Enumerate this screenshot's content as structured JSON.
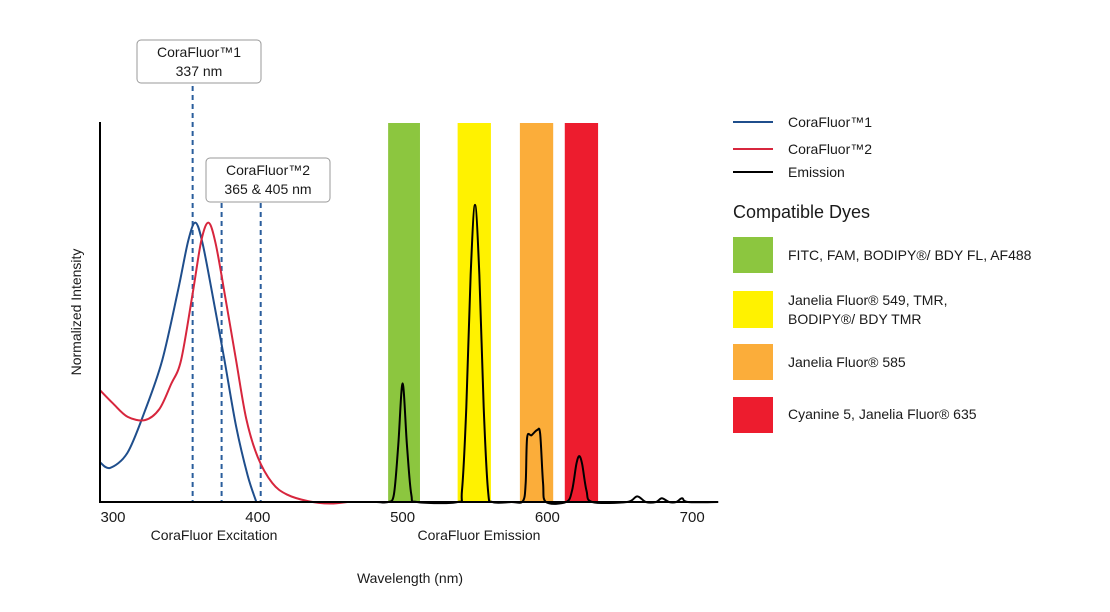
{
  "chart_data": {
    "type": "line",
    "title": "",
    "xlabel": "Wavelength (nm)",
    "ylabel": "Normalized Intensity",
    "x_section_labels": [
      "CoraFluor Excitation",
      "CoraFluor Emission"
    ],
    "xlim": [
      291,
      718
    ],
    "ylim": [
      0,
      1
    ],
    "x_ticks": [
      300,
      400,
      500,
      600,
      700
    ],
    "grid": false,
    "legend_position": "right",
    "series": [
      {
        "name": "CoraFluor™1",
        "color": "#1f4e8c",
        "points": [
          [
            291,
            0.105
          ],
          [
            298,
            0.09
          ],
          [
            310,
            0.13
          ],
          [
            322,
            0.24
          ],
          [
            334,
            0.374
          ],
          [
            345,
            0.56
          ],
          [
            352,
            0.69
          ],
          [
            357,
            0.737
          ],
          [
            362,
            0.68
          ],
          [
            370,
            0.52
          ],
          [
            377,
            0.374
          ],
          [
            385,
            0.2
          ],
          [
            393,
            0.07
          ],
          [
            399,
            0.0
          ]
        ]
      },
      {
        "name": "CoraFluor™2",
        "color": "#d7263d",
        "points": [
          [
            291,
            0.295
          ],
          [
            300,
            0.26
          ],
          [
            310,
            0.225
          ],
          [
            322,
            0.216
          ],
          [
            332,
            0.245
          ],
          [
            340,
            0.31
          ],
          [
            347,
            0.374
          ],
          [
            355,
            0.55
          ],
          [
            361,
            0.69
          ],
          [
            366,
            0.737
          ],
          [
            371,
            0.68
          ],
          [
            378,
            0.53
          ],
          [
            385,
            0.374
          ],
          [
            392,
            0.22
          ],
          [
            400,
            0.118
          ],
          [
            410,
            0.05
          ],
          [
            420,
            0.02
          ],
          [
            435,
            0.002
          ],
          [
            450,
            -0.004
          ],
          [
            462,
            0.0
          ]
        ]
      },
      {
        "name": "Emission",
        "color": "#000000",
        "points": [
          [
            482,
            0
          ],
          [
            490,
            0
          ],
          [
            494,
            0.02
          ],
          [
            497,
            0.15
          ],
          [
            500,
            0.313
          ],
          [
            503,
            0.15
          ],
          [
            506,
            0.02
          ],
          [
            510,
            0
          ],
          [
            538,
            0
          ],
          [
            541,
            0.03
          ],
          [
            544,
            0.25
          ],
          [
            547,
            0.6
          ],
          [
            550,
            0.784
          ],
          [
            553,
            0.6
          ],
          [
            556,
            0.25
          ],
          [
            559,
            0.03
          ],
          [
            562,
            0
          ],
          [
            575,
            0
          ],
          [
            583,
            0.002
          ],
          [
            585,
            0.05
          ],
          [
            586,
            0.17
          ],
          [
            589,
            0.176
          ],
          [
            593,
            0.19
          ],
          [
            595,
            0.18
          ],
          [
            597,
            0.05
          ],
          [
            599,
            0
          ],
          [
            613,
            0
          ],
          [
            617,
            0.03
          ],
          [
            620,
            0.1
          ],
          [
            622,
            0.121
          ],
          [
            624,
            0.1
          ],
          [
            627,
            0.03
          ],
          [
            631,
            0
          ],
          [
            655,
            0
          ],
          [
            662,
            0.015
          ],
          [
            668,
            0
          ],
          [
            675,
            0
          ],
          [
            679,
            0.01
          ],
          [
            684,
            0
          ],
          [
            689,
            0
          ],
          [
            693,
            0.01
          ],
          [
            697,
            0
          ],
          [
            718,
            0
          ]
        ]
      }
    ],
    "markers": [
      {
        "x": 355,
        "group": 0
      },
      {
        "x": 375,
        "group": 1
      },
      {
        "x": 402,
        "group": 1
      }
    ],
    "marker_labels": [
      {
        "line1": "CoraFluor™1",
        "line2": "337 nm"
      },
      {
        "line1": "CoraFluor™2",
        "line2": "365 & 405 nm"
      }
    ],
    "dye_bands_title": "Compatible Dyes",
    "dye_bands": [
      {
        "range": [
          490,
          512
        ],
        "color": "#8cc63f",
        "label": [
          "FITC, FAM, BODIPY®/ BDY FL, AF488"
        ]
      },
      {
        "range": [
          538,
          561
        ],
        "color": "#fff200",
        "label": [
          "Janelia Fluor® 549, TMR,",
          "BODIPY®/ BDY TMR"
        ]
      },
      {
        "range": [
          581,
          604
        ],
        "color": "#fbad3a",
        "label": [
          "Janelia Fluor® 585"
        ]
      },
      {
        "range": [
          612,
          635
        ],
        "color": "#ed1c2e",
        "label": [
          "Cyanine 5, Janelia Fluor® 635"
        ]
      }
    ]
  }
}
